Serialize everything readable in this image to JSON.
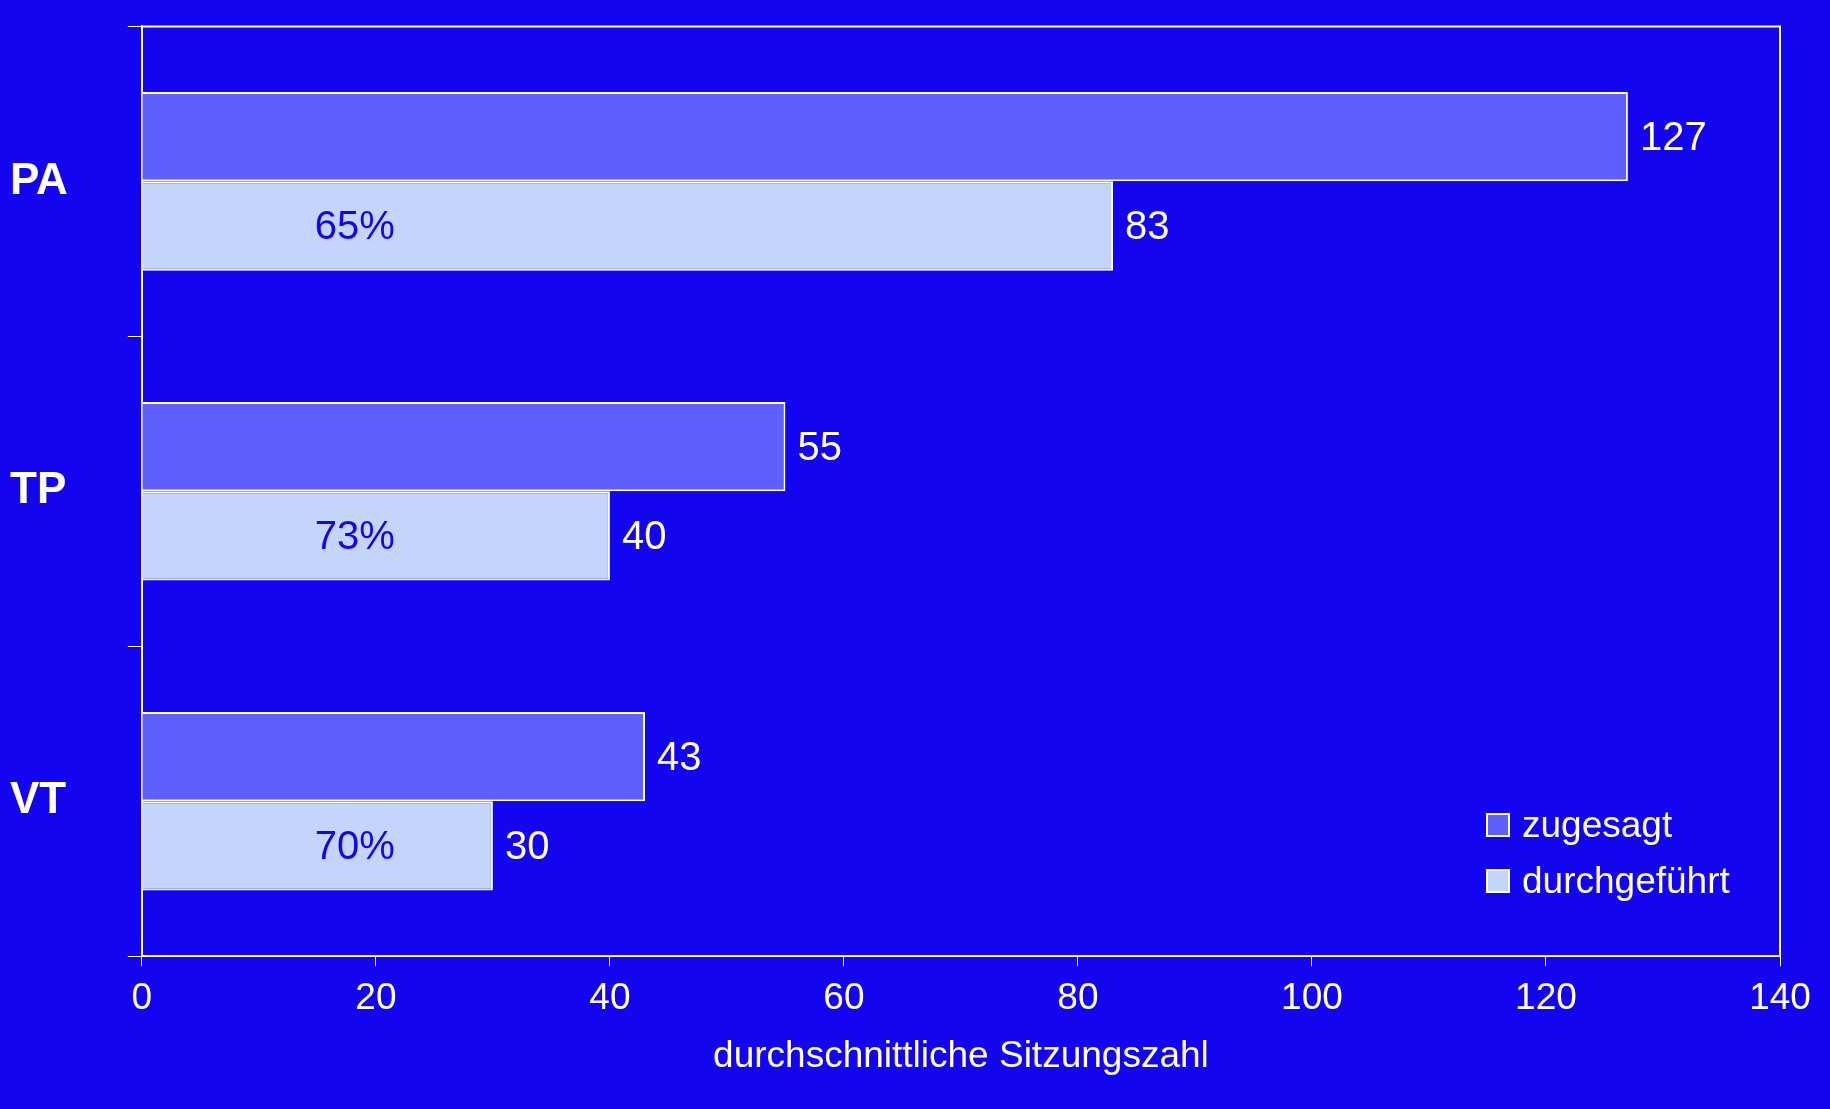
{
  "chart_data": {
    "type": "bar",
    "orientation": "horizontal",
    "xlabel": "durchschnittliche Sitzungszahl",
    "categories": [
      "PA",
      "TP",
      "VT"
    ],
    "series": [
      {
        "name": "zugesagt",
        "color": "#5f5ffe",
        "values": [
          127,
          55,
          43
        ]
      },
      {
        "name": "durchgeführt",
        "color": "#c4d5fc",
        "values": [
          83,
          40,
          30
        ]
      }
    ],
    "xlim": [
      0,
      140
    ],
    "xticks": [
      0,
      20,
      40,
      60,
      80,
      100,
      120,
      140
    ],
    "grid": false,
    "legend": "bottom right",
    "data_labels": true,
    "annotations": [
      "65%",
      "73%",
      "70%"
    ]
  }
}
